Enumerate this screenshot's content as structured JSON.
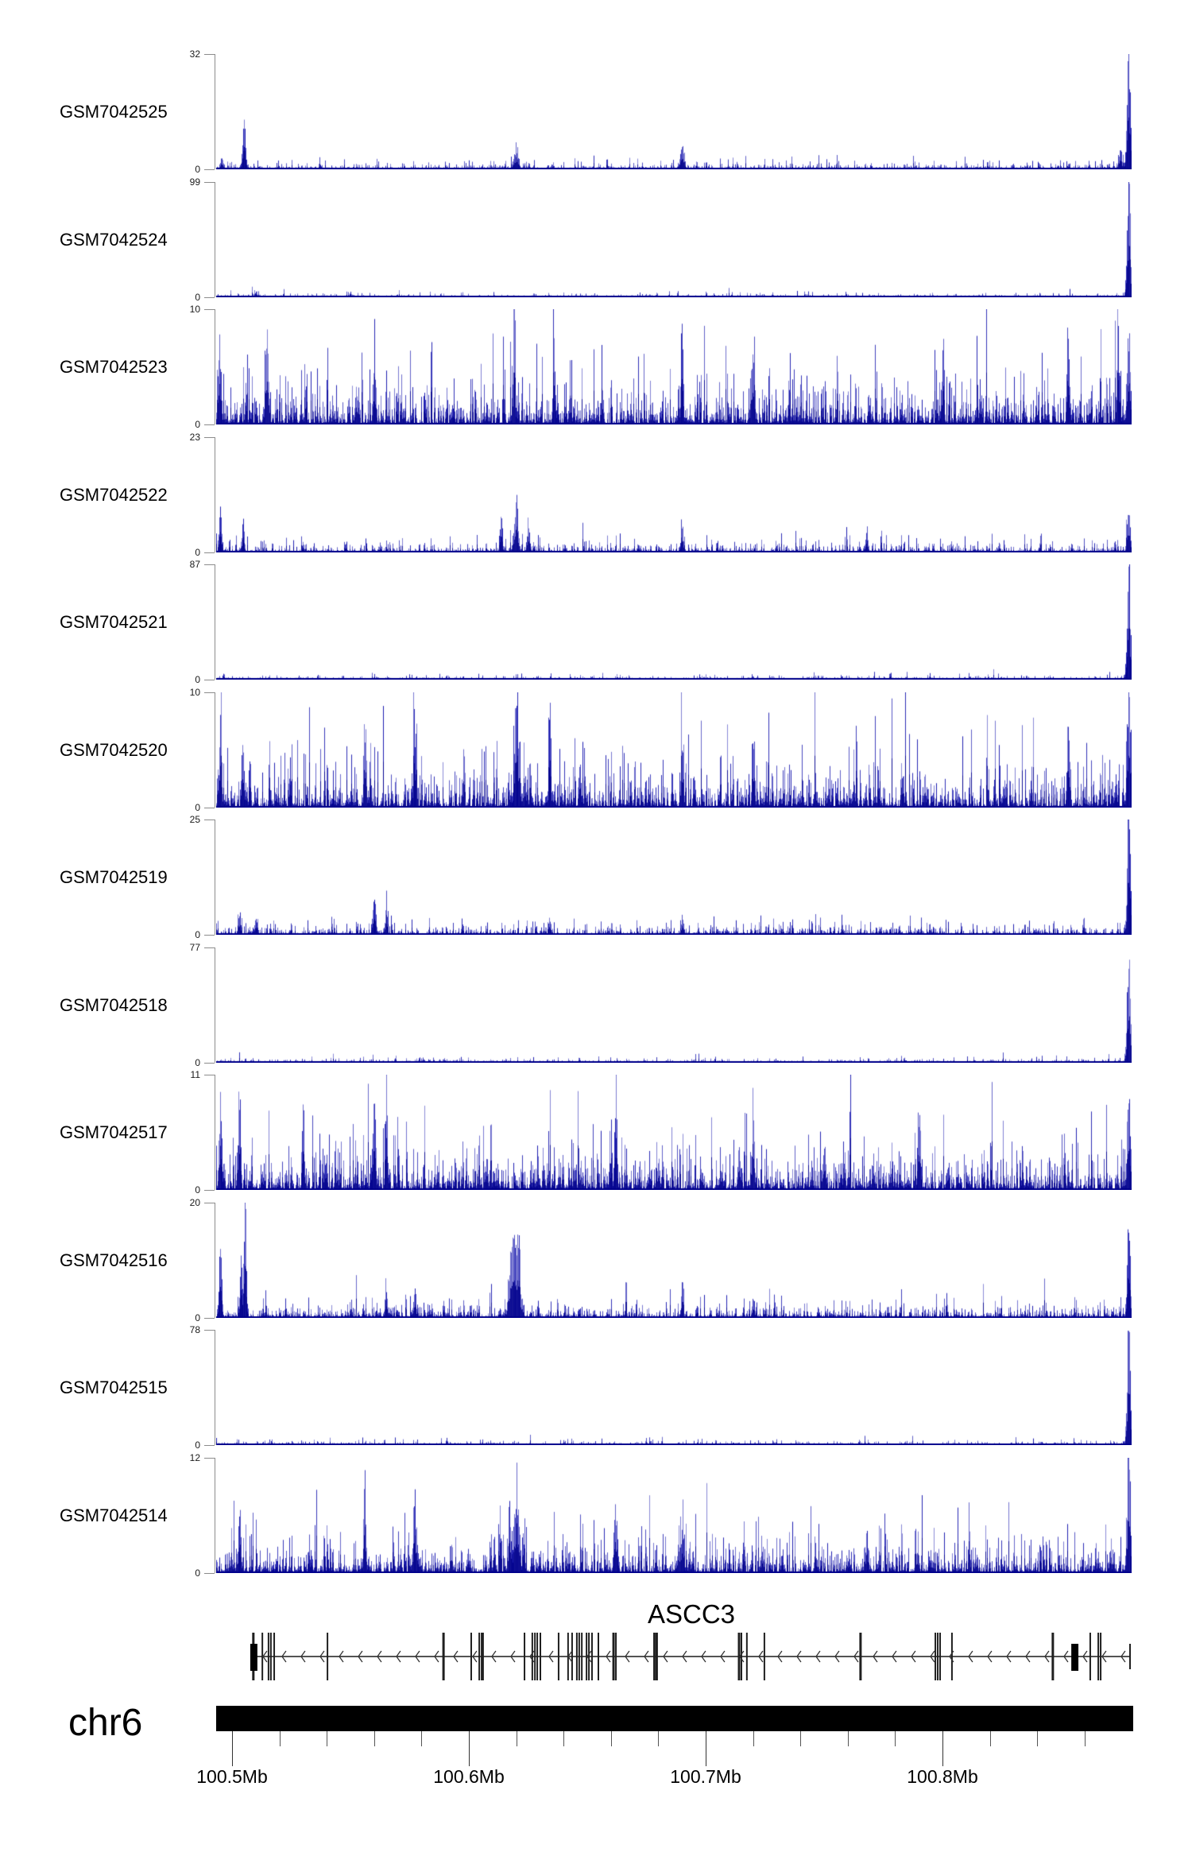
{
  "figure": {
    "kind": "genome coverage tracks",
    "chromosome_label": "chr6"
  },
  "chart_data": {
    "type": "area",
    "title": "ASCC3",
    "region": {
      "chromosome": "chr6",
      "start_mb": 100.4933,
      "end_mb": 100.8799
    },
    "signal_color": "#00008b",
    "x_axis": {
      "unit": "Mb",
      "minor_tick_interval_mb": 0.02,
      "major_ticks": [
        {
          "mb": 100.5,
          "label": "100.5Mb"
        },
        {
          "mb": 100.6,
          "label": "100.6Mb"
        },
        {
          "mb": 100.7,
          "label": "100.7Mb"
        },
        {
          "mb": 100.8,
          "label": "100.8Mb"
        }
      ]
    },
    "tracks": [
      {
        "label": "GSM7042525",
        "ymax": 32,
        "ymin": 0,
        "seed": 101,
        "noise_mean": 0.9,
        "spikes": [
          [
            100.4955,
            4,
            1.5
          ],
          [
            100.505,
            13,
            1.8
          ],
          [
            100.62,
            5,
            2.5
          ],
          [
            100.69,
            6,
            2
          ],
          [
            100.875,
            5,
            2
          ]
        ],
        "right_spike": 32
      },
      {
        "label": "GSM7042524",
        "ymax": 99,
        "ymin": 0,
        "seed": 102,
        "noise_mean": 1.4,
        "spikes": [
          [
            100.51,
            3,
            3
          ],
          [
            100.55,
            2.5,
            3
          ]
        ],
        "right_spike": 99
      },
      {
        "label": "GSM7042523",
        "ymax": 10,
        "ymin": 0,
        "seed": 103,
        "noise_mean": 2.0,
        "spikes": [
          [
            100.4945,
            8,
            1.5
          ],
          [
            100.515,
            6.5,
            1.5
          ],
          [
            100.56,
            5.5,
            1.5
          ],
          [
            100.619,
            10,
            1.2
          ],
          [
            100.636,
            6,
            1.5
          ],
          [
            100.69,
            10,
            1.2
          ],
          [
            100.72,
            6.5,
            1.5
          ],
          [
            100.8,
            6,
            1.5
          ],
          [
            100.853,
            7,
            1.5
          ],
          [
            100.874,
            7.5,
            1.5
          ]
        ],
        "right_spike": 7
      },
      {
        "label": "GSM7042522",
        "ymax": 23,
        "ymin": 0,
        "seed": 104,
        "noise_mean": 1.0,
        "spikes": [
          [
            100.495,
            8,
            1.5
          ],
          [
            100.5045,
            6,
            1.5
          ],
          [
            100.6135,
            6.5,
            1.5
          ],
          [
            100.62,
            9.5,
            2
          ],
          [
            100.625,
            6,
            1.5
          ],
          [
            100.69,
            4.5,
            1.5
          ],
          [
            100.768,
            3.5,
            1.5
          ]
        ],
        "right_spike": 8
      },
      {
        "label": "GSM7042521",
        "ymax": 87,
        "ymin": 0,
        "seed": 105,
        "noise_mean": 1.4,
        "spikes": [],
        "right_spike": 87
      },
      {
        "label": "GSM7042520",
        "ymax": 10,
        "ymin": 0,
        "seed": 106,
        "noise_mean": 2.0,
        "spikes": [
          [
            100.495,
            7,
            1.5
          ],
          [
            100.5045,
            5,
            1.5
          ],
          [
            100.556,
            6,
            1.5
          ],
          [
            100.577,
            6,
            1.5
          ],
          [
            100.62,
            9,
            2.5
          ],
          [
            100.634,
            6.5,
            1.5
          ],
          [
            100.69,
            6,
            1.5
          ],
          [
            100.72,
            5,
            1.5
          ],
          [
            100.853,
            6,
            1.5
          ]
        ],
        "right_spike": 9
      },
      {
        "label": "GSM7042519",
        "ymax": 25,
        "ymin": 0,
        "seed": 107,
        "noise_mean": 1.1,
        "spikes": [
          [
            100.503,
            4,
            1.5
          ],
          [
            100.51,
            3.5,
            1.5
          ],
          [
            100.56,
            7,
            1.8
          ],
          [
            100.565,
            5,
            1.5
          ],
          [
            100.634,
            3,
            1.5
          ],
          [
            100.69,
            3,
            1.5
          ]
        ],
        "right_spike": 25
      },
      {
        "label": "GSM7042518",
        "ymax": 77,
        "ymin": 0,
        "seed": 108,
        "noise_mean": 1.3,
        "spikes": [],
        "right_spike": 77
      },
      {
        "label": "GSM7042517",
        "ymax": 11,
        "ymin": 0,
        "seed": 109,
        "noise_mean": 2.1,
        "spikes": [
          [
            100.495,
            7,
            1.5
          ],
          [
            100.503,
            9,
            1.3
          ],
          [
            100.53,
            6,
            1.5
          ],
          [
            100.56,
            11,
            1.3
          ],
          [
            100.565,
            9.5,
            1.3
          ],
          [
            100.662,
            9,
            1.3
          ],
          [
            100.72,
            6,
            1.5
          ],
          [
            100.79,
            8,
            1.5
          ]
        ],
        "right_spike": 8
      },
      {
        "label": "GSM7042516",
        "ymax": 20,
        "ymin": 0,
        "seed": 110,
        "noise_mean": 1.2,
        "spikes": [
          [
            100.495,
            12,
            1.5
          ],
          [
            100.5037,
            9,
            1.3
          ],
          [
            100.5054,
            20,
            1.5
          ],
          [
            100.565,
            5.5,
            1.5
          ],
          [
            100.577,
            4.5,
            1.5
          ],
          [
            100.6185,
            13,
            4
          ],
          [
            100.621,
            10,
            2
          ],
          [
            100.69,
            4,
            1.5
          ],
          [
            100.72,
            3.5,
            1.5
          ]
        ],
        "right_spike": 14
      },
      {
        "label": "GSM7042515",
        "ymax": 78,
        "ymin": 0,
        "seed": 111,
        "noise_mean": 1.4,
        "spikes": [],
        "right_spike": 78
      },
      {
        "label": "GSM7042514",
        "ymax": 12,
        "ymin": 0,
        "seed": 112,
        "noise_mean": 1.9,
        "spikes": [
          [
            100.503,
            6,
            1.5
          ],
          [
            100.556,
            7,
            1.5
          ],
          [
            100.577,
            6,
            1.5
          ],
          [
            100.617,
            5,
            1.5
          ],
          [
            100.62,
            8.5,
            2.5
          ],
          [
            100.662,
            5.5,
            1.5
          ],
          [
            100.69,
            5,
            1.5
          ],
          [
            100.768,
            4.5,
            1.5
          ]
        ],
        "right_spike": 12
      }
    ],
    "gene_track": {
      "title": "ASCC3",
      "strand": "-",
      "line_start_mb": 100.5077,
      "line_end_mb": 100.8792,
      "exons": [
        [
          100.509,
          3
        ],
        [
          100.5128,
          2
        ],
        [
          100.5154,
          2
        ],
        [
          100.5164,
          2
        ],
        [
          100.5178,
          2
        ],
        [
          100.5403,
          2
        ],
        [
          100.5893,
          3
        ],
        [
          100.601,
          2
        ],
        [
          100.6044,
          2
        ],
        [
          100.6054,
          2
        ],
        [
          100.606,
          2
        ],
        [
          100.6235,
          2
        ],
        [
          100.6268,
          2
        ],
        [
          100.6279,
          2
        ],
        [
          100.6289,
          2
        ],
        [
          100.6302,
          2
        ],
        [
          100.6379,
          2
        ],
        [
          100.6419,
          2
        ],
        [
          100.6436,
          2
        ],
        [
          100.6456,
          2
        ],
        [
          100.6466,
          2
        ],
        [
          100.6477,
          2
        ],
        [
          100.6497,
          2
        ],
        [
          100.6507,
          2
        ],
        [
          100.652,
          2
        ],
        [
          100.6547,
          2
        ],
        [
          100.6611,
          3
        ],
        [
          100.6621,
          2
        ],
        [
          100.6782,
          2
        ],
        [
          100.6789,
          2
        ],
        [
          100.6795,
          2
        ],
        [
          100.7141,
          3
        ],
        [
          100.7151,
          2
        ],
        [
          100.7174,
          2
        ],
        [
          100.7248,
          2
        ],
        [
          100.7654,
          3
        ],
        [
          100.797,
          2
        ],
        [
          100.798,
          2
        ],
        [
          100.799,
          2
        ],
        [
          100.804,
          2
        ],
        [
          100.8466,
          3
        ],
        [
          100.8624,
          2
        ],
        [
          100.8658,
          2
        ],
        [
          100.8668,
          2
        ]
      ],
      "cds_blocks": [
        {
          "start_mb": 100.5077,
          "end_mb": 100.5107
        },
        {
          "start_mb": 100.8544,
          "end_mb": 100.8574
        }
      ],
      "end_tick_mb": 100.8792
    }
  }
}
